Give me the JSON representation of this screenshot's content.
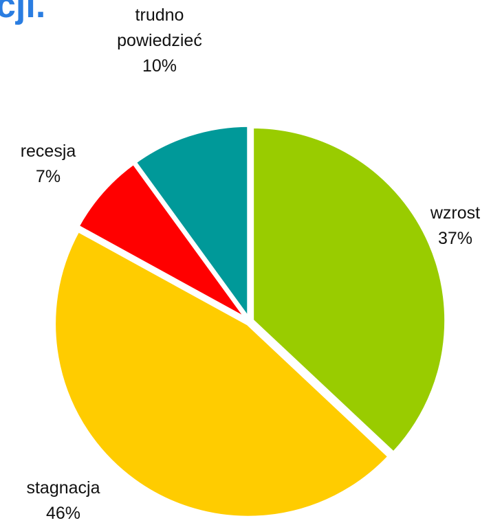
{
  "chart_data": {
    "type": "pie",
    "title": "cji.",
    "categories": [
      "wzrost",
      "stagnacja",
      "recesja",
      "trudno powiedzieć"
    ],
    "values": [
      37,
      46,
      7,
      10
    ],
    "value_labels": [
      "37%",
      "46%",
      "7%",
      "10%"
    ],
    "colors": [
      "#99cc00",
      "#ffcc00",
      "#ff0000",
      "#009999"
    ]
  }
}
